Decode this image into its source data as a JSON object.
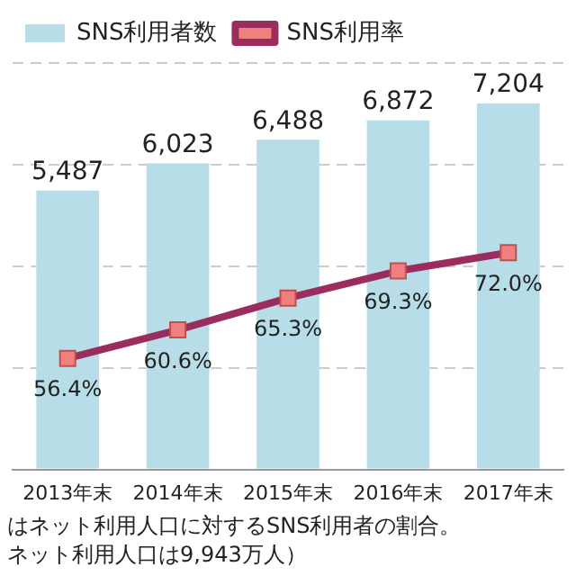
{
  "chart_data": {
    "type": "bar",
    "categories": [
      "2013年末",
      "2014年末",
      "2015年末",
      "2016年末",
      "2017年末"
    ],
    "series": [
      {
        "name": "SNS利用者数",
        "color": "#b7dde8",
        "values": [
          5487,
          6023,
          6488,
          6872,
          7204
        ],
        "value_labels": [
          "5,487",
          "6,023",
          "6,488",
          "6,872",
          "7,204"
        ]
      },
      {
        "name": "SNS利用率",
        "type": "line",
        "axis": "y2",
        "color": "#9b2d5e",
        "values": [
          56.4,
          60.6,
          65.3,
          69.3,
          72.0
        ],
        "value_labels": [
          "56.4%",
          "60.6%",
          "65.3%",
          "69.3%",
          "72.0%"
        ]
      }
    ],
    "ylim": [
      0,
      8000
    ],
    "yticks": [
      {
        "value": 0,
        "label": null
      },
      {
        "value": 2000,
        "label": null
      },
      {
        "value": 4000,
        "label": null
      },
      {
        "value": 6000,
        "label": null
      },
      {
        "value": 8000,
        "label": null
      }
    ],
    "y2lim": [
      40,
      100
    ],
    "grid": "y",
    "legend": "top left",
    "tick_labels": "x",
    "marker": "square",
    "annotations": [
      "はネット利用人口に対するSNS利用者の割合。",
      "ネット利用人口は9,943万人）"
    ]
  }
}
